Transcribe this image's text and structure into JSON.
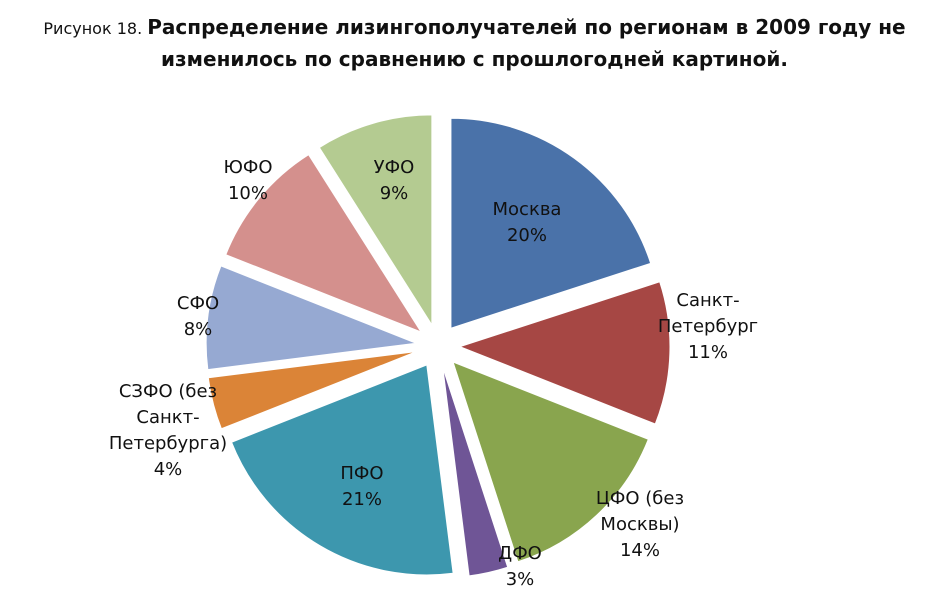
{
  "caption": {
    "figure_label": "Рисунок 18.",
    "title_line1": "Распределение лизингополучателей по регионам в 2009 году не",
    "title_line2": "изменилось по сравнению с прошлогодней картиной."
  },
  "chart_data": {
    "type": "pie",
    "exploded": true,
    "start": "12 o'clock",
    "direction": "clockwise",
    "slices": [
      {
        "label_lines": [
          "Москва"
        ],
        "value": 20,
        "value_label": "20%",
        "color": "#4a72a9"
      },
      {
        "label_lines": [
          "Санкт-",
          "Петербург"
        ],
        "value": 11,
        "value_label": "11%",
        "color": "#a64744"
      },
      {
        "label_lines": [
          "ЦФО (без",
          "Москвы)"
        ],
        "value": 14,
        "value_label": "14%",
        "color": "#89a54e"
      },
      {
        "label_lines": [
          "ДФО"
        ],
        "value": 3,
        "value_label": "3%",
        "color": "#6f5596"
      },
      {
        "label_lines": [
          "ПФО"
        ],
        "value": 21,
        "value_label": "21%",
        "color": "#3d97ae"
      },
      {
        "label_lines": [
          "СЗФО (без",
          "Санкт-",
          "Петербурга)"
        ],
        "value": 4,
        "value_label": "4%",
        "color": "#db8437"
      },
      {
        "label_lines": [
          "СФО"
        ],
        "value": 8,
        "value_label": "8%",
        "color": "#96a9d2"
      },
      {
        "label_lines": [
          "ЮФО"
        ],
        "value": 10,
        "value_label": "10%",
        "color": "#d4908d"
      },
      {
        "label_lines": [
          "УФО"
        ],
        "value": 9,
        "value_label": "9%",
        "color": "#b4cb91"
      }
    ]
  }
}
